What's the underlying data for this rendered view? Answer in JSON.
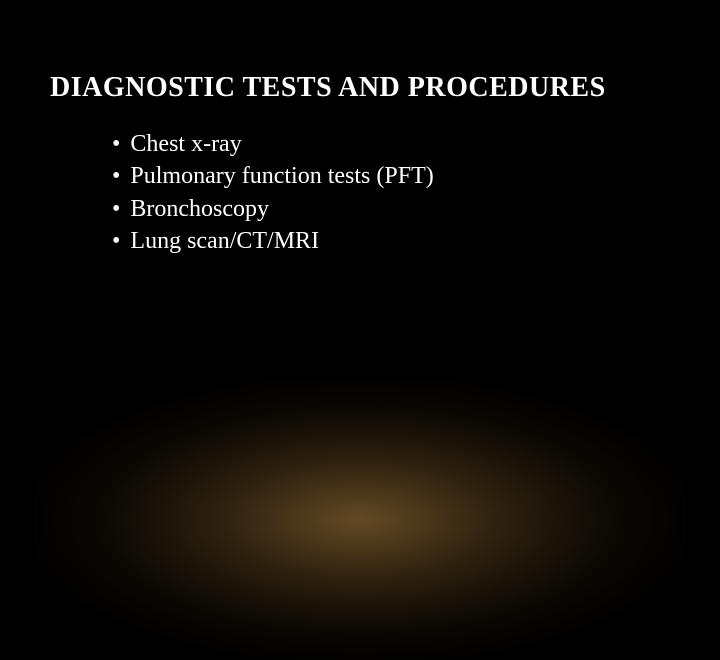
{
  "slide": {
    "title": "DIAGNOSTIC TESTS AND PROCEDURES",
    "bullets": [
      "Chest x-ray",
      "Pulmonary function tests (PFT)",
      "Bronchoscopy",
      "Lung scan/CT/MRI"
    ],
    "bullet_char": "•",
    "styling": {
      "background_color": "#000000",
      "title_color": "#ffffff",
      "title_fontsize": 28,
      "title_fontweight": "bold",
      "body_color": "#ffffff",
      "body_fontsize": 24,
      "font_family_title": "Georgia, Times New Roman, serif",
      "font_family_body": "Times New Roman, Georgia, serif",
      "glow_color_inner": "rgba(218,165,80,0.45)",
      "glow_color_mid": "rgba(180,130,60,0.25)",
      "glow_width": 650,
      "glow_height": 280,
      "title_left_pad": 50,
      "list_left_pad": 112,
      "line_height": 1.35
    }
  }
}
